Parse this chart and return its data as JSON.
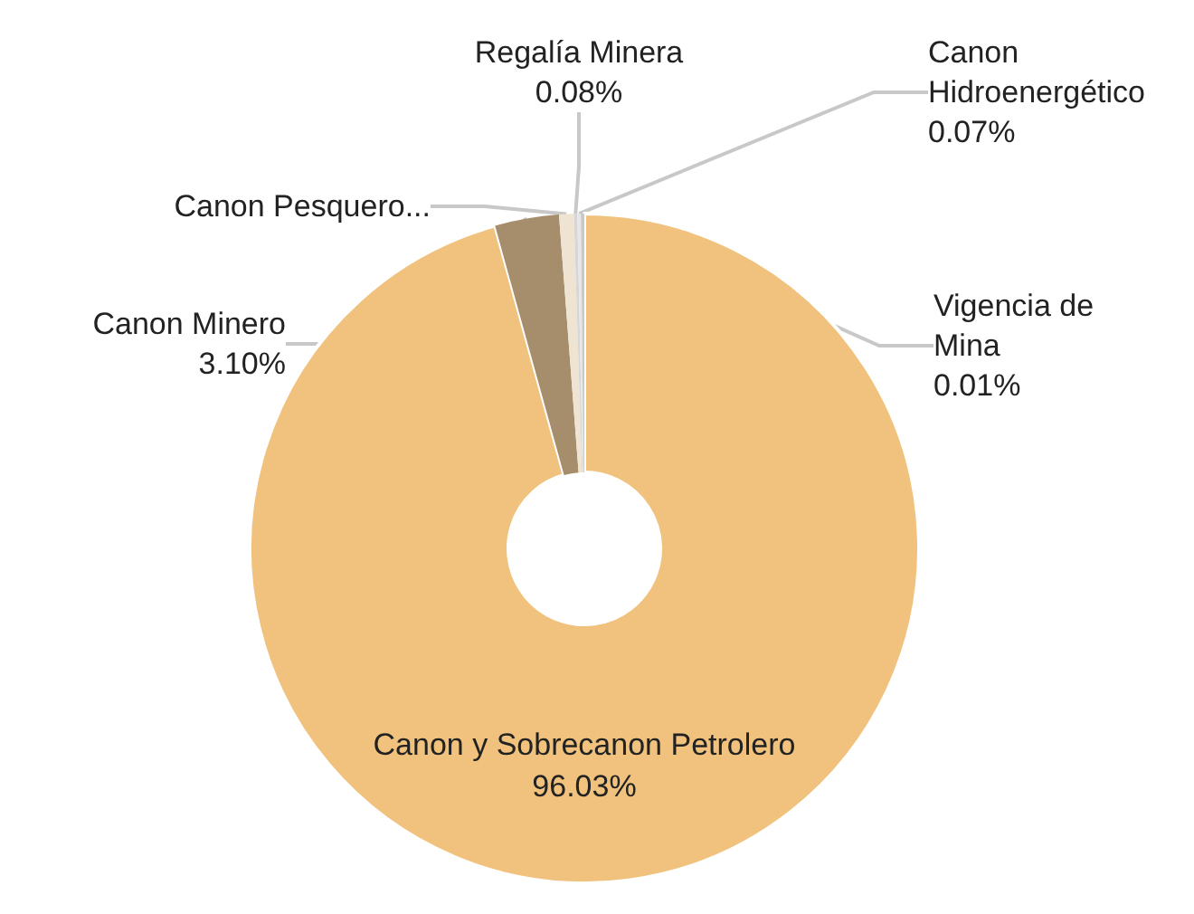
{
  "chart_data": {
    "type": "donut",
    "categories": [
      "Canon y Sobrecanon Petrolero",
      "Canon Minero",
      "Canon Pesquero...",
      "Regalía Minera",
      "Canon Hidroenergético",
      "Vigencia de Mina"
    ],
    "values": [
      96.03,
      3.1,
      0.71,
      0.08,
      0.07,
      0.01
    ],
    "value_labels": [
      "96.03%",
      "3.10%",
      null,
      "0.08%",
      "0.07%",
      "0.01%"
    ],
    "colors": [
      "#f0c27e",
      "#a68d6b",
      "#efe4d2",
      "#d6d6d6",
      "#e6e6e6",
      "#c9c9c9"
    ],
    "legend": false
  }
}
